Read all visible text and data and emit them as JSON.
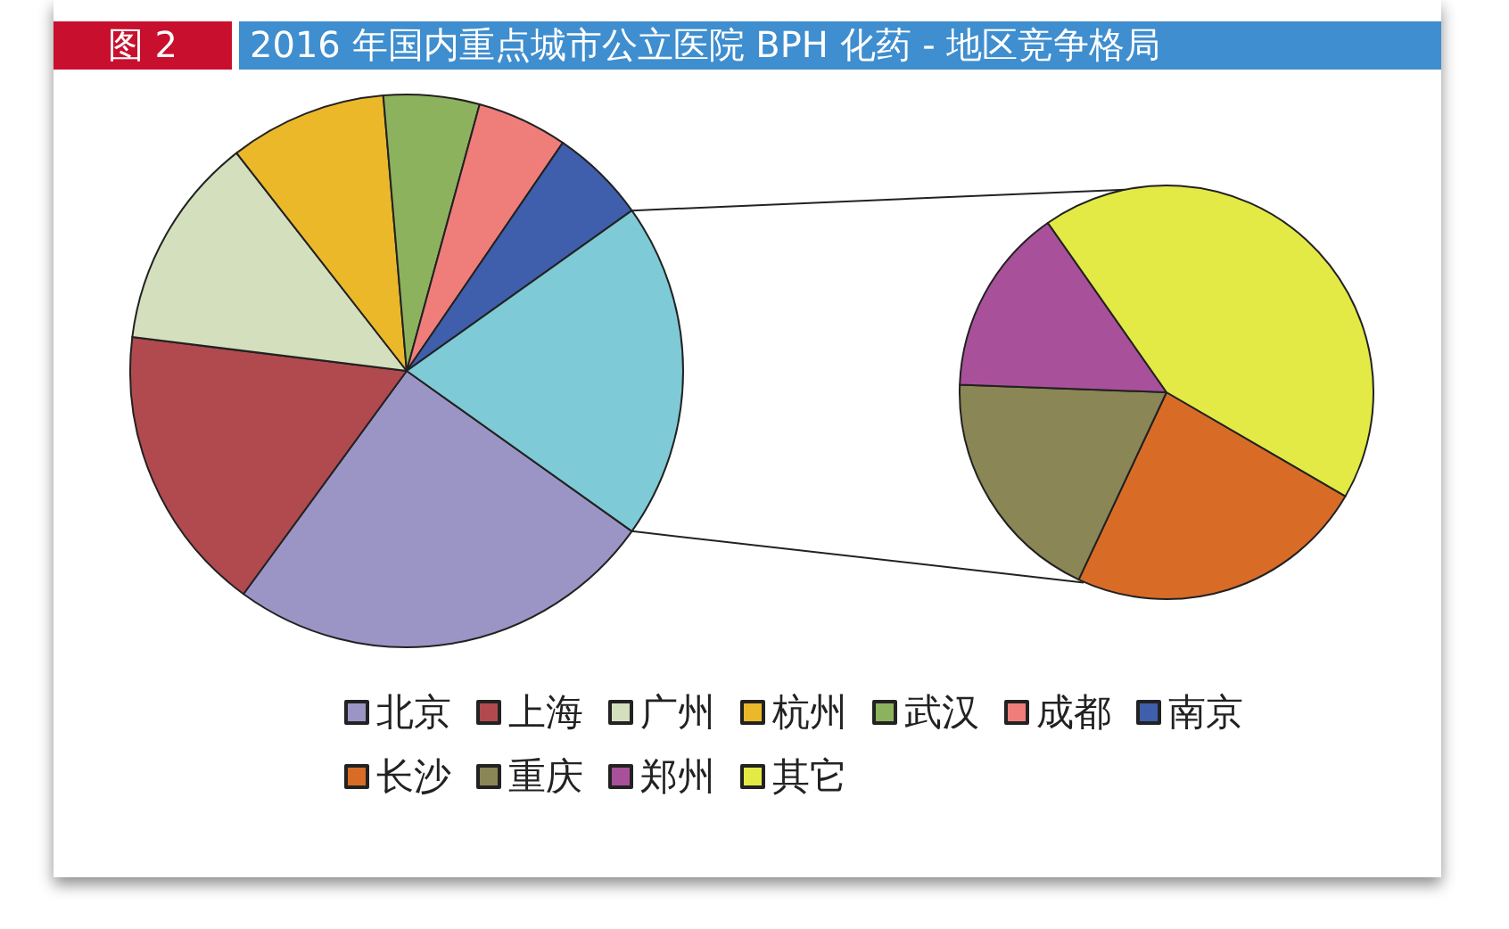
{
  "chart_data": [
    {
      "type": "pie",
      "title": "2016 年国内重点城市公立医院 BPH 化药 - 地区竞争格局",
      "annotations": [
        "图 2"
      ],
      "categories": [
        "北京",
        "上海",
        "广州",
        "杭州",
        "武汉",
        "成都",
        "南京",
        null
      ],
      "values": [
        25.2,
        16.9,
        12.5,
        9.2,
        5.6,
        5.3,
        5.6,
        19.7
      ],
      "colors": [
        "#9b95c6",
        "#b04a4f",
        "#d3dfbd",
        "#ebb82a",
        "#8db25e",
        "#ef7e7b",
        "#3f5fac",
        "#7ecad6"
      ],
      "legend": "bottom"
    },
    {
      "type": "pie",
      "categories": [
        "长沙",
        "重庆",
        "郑州",
        "其它"
      ],
      "values": [
        23.6,
        18.6,
        14.7,
        43.1
      ],
      "colors": [
        "#d86c27",
        "#8b8655",
        "#a9509b",
        "#e3ea45"
      ],
      "legend": "bottom"
    }
  ]
}
